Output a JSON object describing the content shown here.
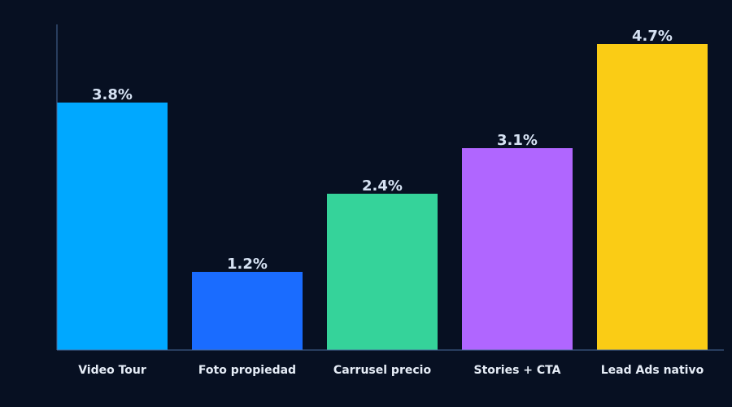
{
  "chart_data": {
    "type": "bar",
    "categories": [
      "Video Tour",
      "Foto propiedad",
      "Carrusel precio",
      "Stories + CTA",
      "Lead Ads nativo"
    ],
    "values": [
      3.8,
      1.2,
      2.4,
      3.1,
      4.7
    ],
    "value_labels": [
      "3.8%",
      "1.2%",
      "2.4%",
      "3.1%",
      "4.7%"
    ],
    "colors": [
      "#00a8ff",
      "#1a6cff",
      "#35d39a",
      "#b066ff",
      "#facc15"
    ],
    "title": "",
    "xlabel": "",
    "ylabel": "",
    "ylim": [
      0,
      5
    ],
    "grid": false,
    "legend": "none",
    "background": "#071022",
    "axis_color": "#4a6a9a"
  }
}
